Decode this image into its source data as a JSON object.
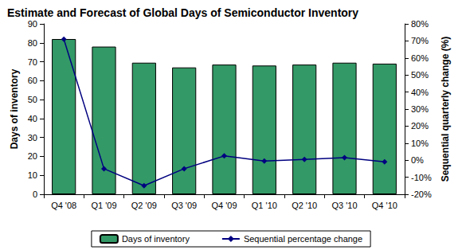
{
  "chart_data": {
    "type": "bar",
    "title": "Estimate and Forecast of Global Days of Semiconductor Inventory",
    "categories": [
      "Q4 '08",
      "Q1 '09",
      "Q2 '09",
      "Q3 '09",
      "Q4 '09",
      "Q1 '10",
      "Q2 '10",
      "Q3 '10",
      "Q4 '10"
    ],
    "series": [
      {
        "name": "Days of inventory",
        "type": "bar",
        "color": "#339966",
        "values": [
          82,
          78,
          69.5,
          67,
          68.5,
          68,
          68.5,
          69.5,
          69
        ]
      },
      {
        "name": "Sequential percentage change",
        "type": "line",
        "color": "#000080",
        "marker": "diamond",
        "line_style": "solid",
        "axis": "y2",
        "values": [
          71,
          -5,
          -15,
          -5,
          2.5,
          -0.5,
          0.5,
          1.5,
          -1
        ]
      }
    ],
    "ylabel": "Days of inventory",
    "y2label": "Sequential quarterly change (%)",
    "ylim": [
      0,
      90
    ],
    "yticks": [
      0,
      10,
      20,
      30,
      40,
      50,
      60,
      70,
      80,
      90
    ],
    "y2lim": [
      -20,
      80
    ],
    "y2ticks": [
      {
        "value": -20,
        "label": "-20%"
      },
      {
        "value": -10,
        "label": "-10%"
      },
      {
        "value": 0,
        "label": "0%"
      },
      {
        "value": 10,
        "label": "10%"
      },
      {
        "value": 20,
        "label": "20%"
      },
      {
        "value": 30,
        "label": "30%"
      },
      {
        "value": 40,
        "label": "40%"
      },
      {
        "value": 50,
        "label": "50%"
      },
      {
        "value": 60,
        "label": "60%"
      },
      {
        "value": 70,
        "label": "70%"
      },
      {
        "value": 80,
        "label": "80%"
      }
    ],
    "legend": "bottom",
    "grid": false
  }
}
